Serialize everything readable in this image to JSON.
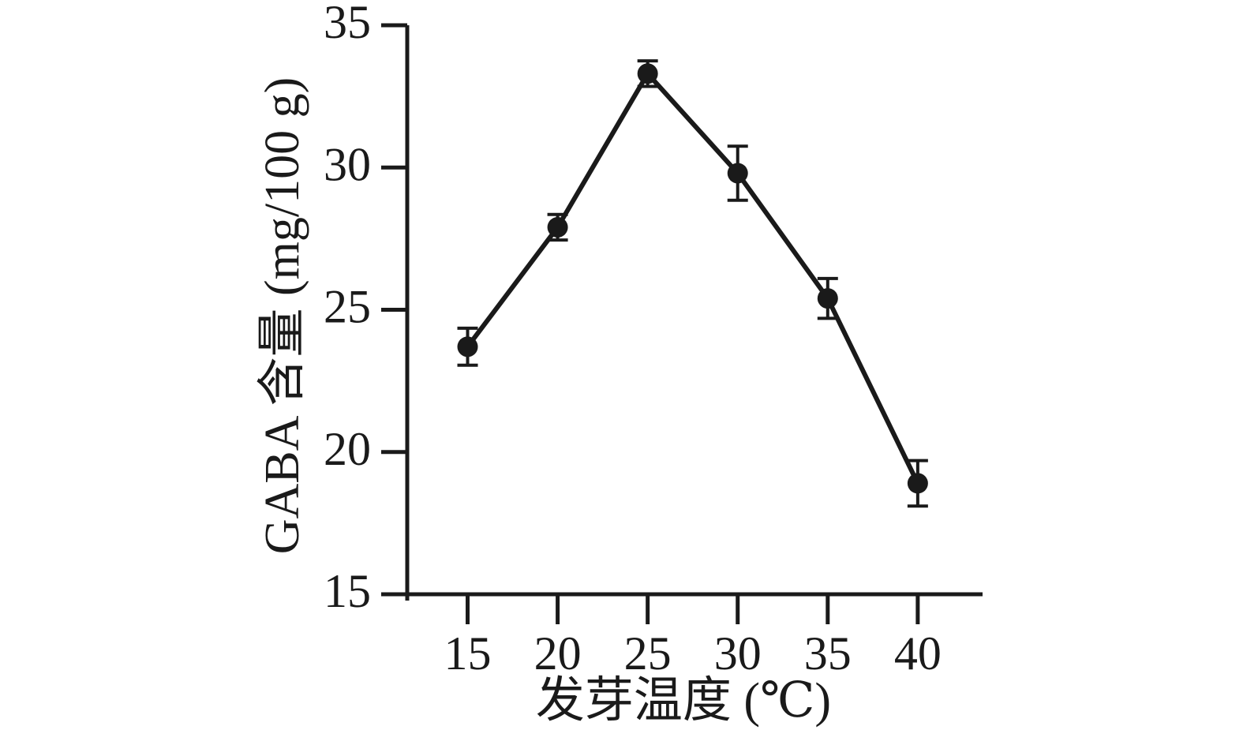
{
  "figure": {
    "background": "#ffffff",
    "ink_color": "#1a1a1a"
  },
  "chart_data": {
    "type": "line",
    "title": "",
    "xlabel": "发芽温度 (℃)",
    "ylabel": "GABA 含量 (mg/100 g)",
    "x": [
      15,
      20,
      25,
      30,
      35,
      40
    ],
    "series": [
      {
        "name": "GABA content",
        "values": [
          23.7,
          27.9,
          33.3,
          29.8,
          25.4,
          18.9
        ],
        "errors": [
          0.65,
          0.45,
          0.45,
          0.95,
          0.7,
          0.8
        ]
      }
    ],
    "x_ticks": [
      "15",
      "20",
      "25",
      "30",
      "35",
      "40"
    ],
    "y_ticks": [
      "15",
      "20",
      "25",
      "30",
      "35"
    ],
    "xlim": [
      10.2,
      43.6
    ],
    "ylim": [
      15,
      35
    ],
    "grid": false,
    "legend": "none",
    "marker": "filled-circle",
    "line_color": "#1a1a1a",
    "marker_color": "#1a1a1a"
  }
}
